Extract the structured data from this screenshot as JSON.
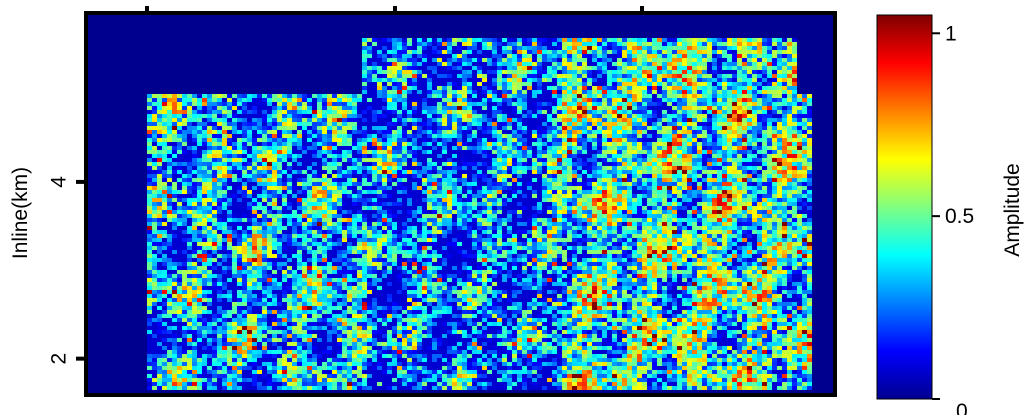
{
  "chart_data": {
    "type": "heatmap",
    "title": "",
    "ylabel": "Inline(km)",
    "y_ticks": [
      {
        "value": 4,
        "label": "4"
      },
      {
        "value": 2,
        "label": "2"
      }
    ],
    "ylim": [
      1.6,
      5.9
    ],
    "x_ticks_labeled": false,
    "x_tick_count": 3,
    "colormap": "jet",
    "colorbar": {
      "label": "Amplitude",
      "range": [
        0,
        1.05
      ],
      "ticks": [
        {
          "value": 1,
          "label": "1"
        },
        {
          "value": 0.5,
          "label": "0.5"
        },
        {
          "value": 0,
          "label": "0"
        }
      ]
    },
    "background_color": "#00008f",
    "data_footprint": "irregular survey outline; amplitude values shown as dense noisy texture, higher on the right half"
  }
}
